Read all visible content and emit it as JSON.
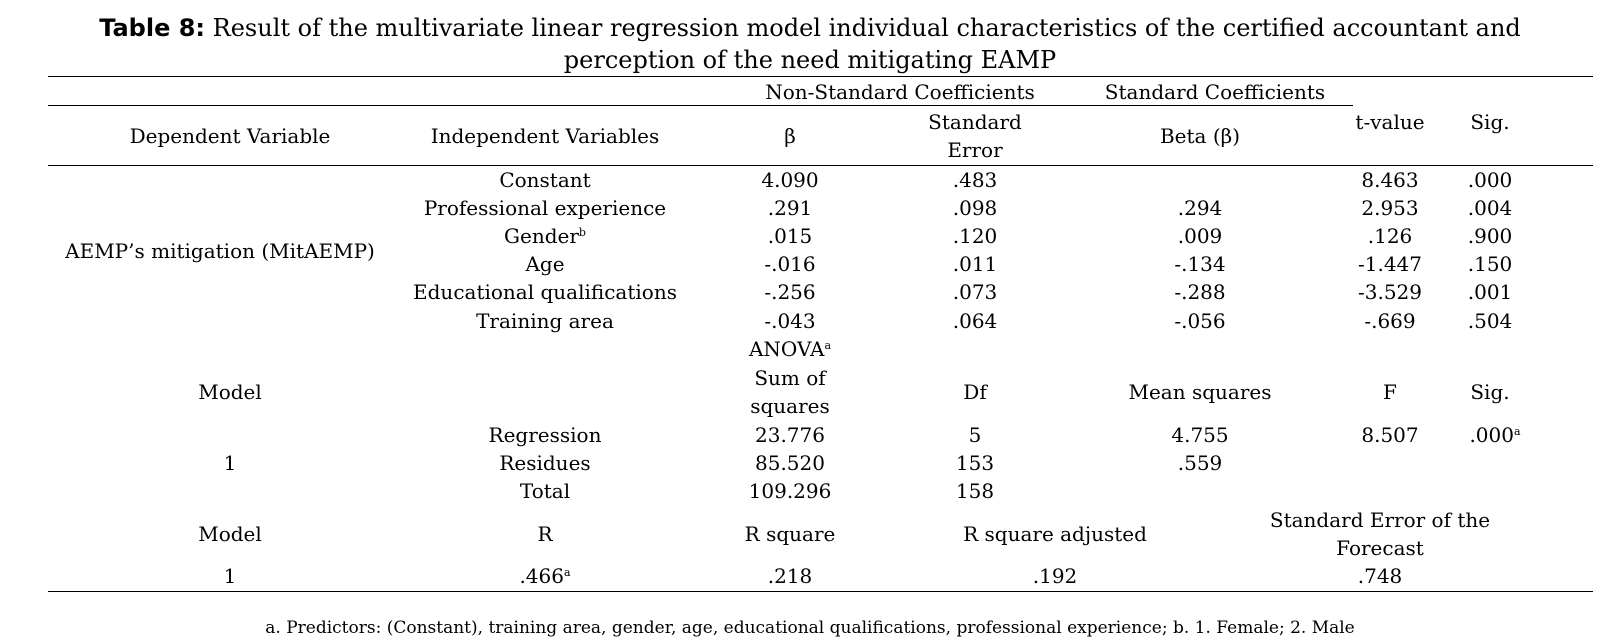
{
  "title": {
    "label": "Table 8:",
    "line1": "Result of the multivariate linear regression model individual characteristics of the certified accountant and",
    "line2": "perception of the need mitigating EAMP"
  },
  "coef_table": {
    "group_nonstd": "Non-Standard Coefficients",
    "group_std": "Standard Coefficients",
    "headers": {
      "dependent": "Dependent Variable",
      "independent": "Independent Variables",
      "beta": "β",
      "std_error": "Standard Error",
      "std_beta": "Beta (β)",
      "t_value": "t-value",
      "sig": "Sig."
    },
    "dependent_variable": "AEMP’s mitigation (MitAEMP)",
    "rows": [
      {
        "var": "Constant",
        "sup": "",
        "b": "4.090",
        "se": ".483",
        "beta": "",
        "t": "8.463",
        "sig": ".000"
      },
      {
        "var": "Professional experience",
        "sup": "",
        "b": ".291",
        "se": ".098",
        "beta": ".294",
        "t": "2.953",
        "sig": ".004"
      },
      {
        "var": "Gender",
        "sup": "b",
        "b": ".015",
        "se": ".120",
        "beta": ".009",
        "t": ".126",
        "sig": ".900"
      },
      {
        "var": "Age",
        "sup": "",
        "b": "-.016",
        "se": ".011",
        "beta": "-.134",
        "t": "-1.447",
        "sig": ".150"
      },
      {
        "var": "Educational qualifications",
        "sup": "",
        "b": "-.256",
        "se": ".073",
        "beta": "-.288",
        "t": "-3.529",
        "sig": ".001"
      },
      {
        "var": "Training area",
        "sup": "",
        "b": "-.043",
        "se": ".064",
        "beta": "-.056",
        "t": "-.669",
        "sig": ".504"
      }
    ]
  },
  "anova": {
    "title": "ANOVA",
    "title_sup": "a",
    "headers": {
      "model": "Model",
      "sum_squares": "Sum of squares",
      "df": "Df",
      "mean_squares": "Mean squares",
      "f": "F",
      "sig": "Sig."
    },
    "model_number": "1",
    "rows": [
      {
        "label": "Regression",
        "ss": "23.776",
        "df": "5",
        "ms": "4.755",
        "f": "8.507",
        "sig": ".000",
        "sig_sup": "a"
      },
      {
        "label": "Residues",
        "ss": "85.520",
        "df": "153",
        "ms": ".559",
        "f": "",
        "sig": "",
        "sig_sup": ""
      },
      {
        "label": "Total",
        "ss": "109.296",
        "df": "158",
        "ms": "",
        "f": "",
        "sig": "",
        "sig_sup": ""
      }
    ]
  },
  "summary": {
    "headers": {
      "model": "Model",
      "r": "R",
      "r_square": "R square",
      "r_square_adj": "R square adjusted",
      "std_error_forecast": "Standard Error of the Forecast"
    },
    "row": {
      "model": "1",
      "r": ".466",
      "r_sup": "a",
      "r_square": ".218",
      "r_square_adj": ".192",
      "std_error_forecast": ".748"
    }
  },
  "footnote": "a. Predictors: (Constant), training area, gender, age, educational qualifications, professional experience; b. 1. Female; 2. Male"
}
